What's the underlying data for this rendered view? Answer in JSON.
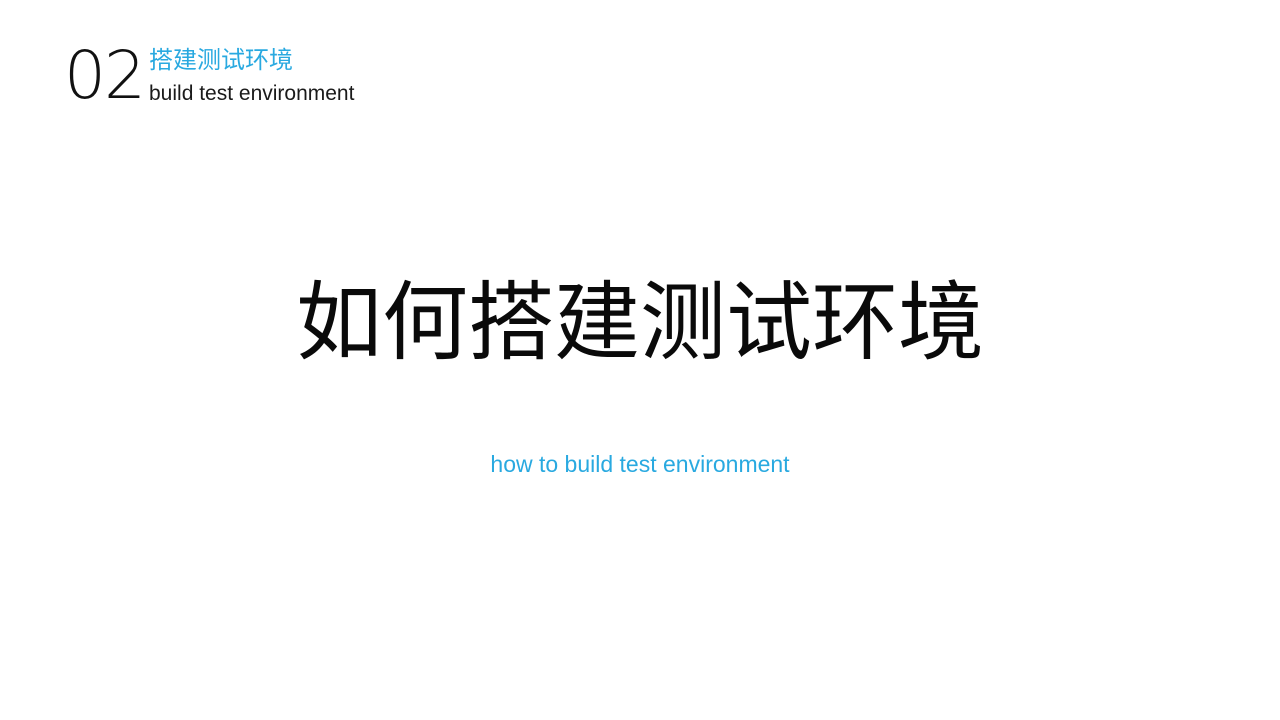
{
  "header": {
    "number": "02",
    "title_zh": "搭建测试环境",
    "title_en": "build test environment"
  },
  "main": {
    "title": "如何搭建测试环境",
    "subtitle": "how to build test environment"
  },
  "colors": {
    "accent": "#29a9e0",
    "text": "#0a0a0a",
    "background": "#ffffff"
  }
}
